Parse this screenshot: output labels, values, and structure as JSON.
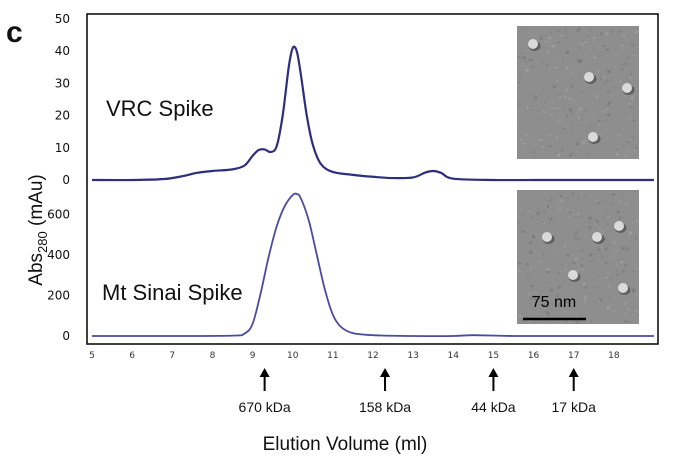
{
  "panel_label": "c",
  "chart_data": {
    "type": "line",
    "title": "",
    "xlabel": "Elution Volume (ml)",
    "ylabel_main": "Abs",
    "ylabel_sub": "280",
    "ylabel_unit": " (mAu)",
    "x_range": [
      4.95,
      19.05
    ],
    "x_ticks": [
      "5",
      "6",
      "7",
      "8",
      "9",
      "10",
      "11",
      "12",
      "13",
      "14",
      "15",
      "16",
      "17",
      "18"
    ],
    "series": [
      {
        "name": "VRC Spike",
        "color": "#2b2f7e",
        "ylim": [
          0,
          50
        ],
        "y_ticks": [
          "0",
          "10",
          "20",
          "30",
          "40",
          "50"
        ],
        "x": [
          5.0,
          6.0,
          6.8,
          7.3,
          7.6,
          8.0,
          8.5,
          8.8,
          9.0,
          9.15,
          9.3,
          9.45,
          9.6,
          9.75,
          9.9,
          10.0,
          10.1,
          10.2,
          10.35,
          10.5,
          10.7,
          11.0,
          11.5,
          12.0,
          12.5,
          13.0,
          13.3,
          13.5,
          13.7,
          14.0,
          15.0,
          16.0,
          17.0,
          18.0,
          19.0
        ],
        "y": [
          0,
          0,
          0.3,
          1.3,
          2.2,
          2.8,
          3.3,
          4.5,
          7.5,
          9.3,
          9.5,
          8.7,
          10.5,
          20.0,
          35.0,
          41.0,
          40.0,
          33.0,
          20.0,
          11.0,
          5.0,
          2.5,
          1.6,
          1.0,
          0.6,
          0.8,
          2.3,
          2.8,
          2.2,
          0.4,
          0,
          0,
          0,
          0,
          0
        ]
      },
      {
        "name": "Mt Sinai Spike",
        "color": "#4a4aa3",
        "ylim": [
          0,
          700
        ],
        "y_ticks": [
          "0",
          "200",
          "400",
          "600"
        ],
        "x": [
          5.0,
          7.0,
          8.5,
          8.8,
          9.0,
          9.2,
          9.4,
          9.6,
          9.8,
          10.0,
          10.1,
          10.2,
          10.4,
          10.6,
          10.8,
          11.0,
          11.2,
          11.5,
          12.0,
          13.0,
          14.0,
          14.5,
          15.5,
          17.0,
          19.0
        ],
        "y": [
          0,
          0,
          2,
          12,
          60,
          210,
          390,
          540,
          640,
          695,
          700,
          680,
          570,
          400,
          230,
          105,
          45,
          14,
          4,
          0,
          0,
          4,
          0,
          0,
          0
        ]
      }
    ],
    "annotations": [
      {
        "x": 9.3,
        "label": "670 kDa"
      },
      {
        "x": 12.3,
        "label": "158 kDa"
      },
      {
        "x": 15.0,
        "label": "44 kDa"
      },
      {
        "x": 17.0,
        "label": "17 kDa"
      }
    ],
    "scale_bar_label": "75 nm"
  }
}
